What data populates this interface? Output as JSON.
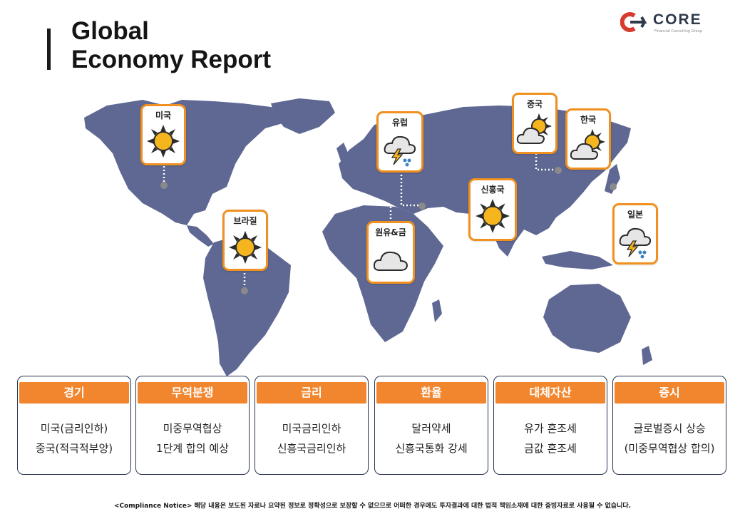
{
  "header": {
    "title_line1": "Global",
    "title_line2": "Economy Report"
  },
  "logo": {
    "name": "CORE",
    "tagline": "Financial Consulting Group"
  },
  "map_pins": [
    {
      "id": "usa",
      "label": "미국",
      "weather": "sunny"
    },
    {
      "id": "brazil",
      "label": "브라질",
      "weather": "sunny"
    },
    {
      "id": "europe",
      "label": "유럽",
      "weather": "thunderstorm"
    },
    {
      "id": "oil-gold",
      "label": "원유&금",
      "weather": "cloudy"
    },
    {
      "id": "china",
      "label": "중국",
      "weather": "partly-cloudy"
    },
    {
      "id": "korea",
      "label": "한국",
      "weather": "partly-cloudy"
    },
    {
      "id": "emerging",
      "label": "신흥국",
      "weather": "sunny"
    },
    {
      "id": "japan",
      "label": "일본",
      "weather": "thunderstorm"
    }
  ],
  "cards": [
    {
      "header": "경기",
      "line1": "미국(금리인하)",
      "line2": "중국(적극적부양)"
    },
    {
      "header": "무역분쟁",
      "line1": "미중무역협상",
      "line2": "1단계 합의 예상"
    },
    {
      "header": "금리",
      "line1": "미국금리인하",
      "line2": "신흥국금리인하"
    },
    {
      "header": "환율",
      "line1": "달러약세",
      "line2": "신흥국통화 강세"
    },
    {
      "header": "대체자산",
      "line1": "유가 혼조세",
      "line2": "금값 혼조세"
    },
    {
      "header": "증시",
      "line1": "글로벌증시  상승",
      "line2": "(미중무역협상 합의)"
    }
  ],
  "notice": "<Compliance Notice> 해당 내용은 보도된 자료나 요약된 정보로 정확성으로 보장할 수 없으므로 어떠한 경우에도 투자결과에 대한 법적 책임소재에 대한 증빙자료로 사용될 수 없습니다.",
  "colors": {
    "map": "#5e6893",
    "accent": "#f2862e",
    "pin_border": "#f0901e",
    "sun": "#f5b51f"
  }
}
